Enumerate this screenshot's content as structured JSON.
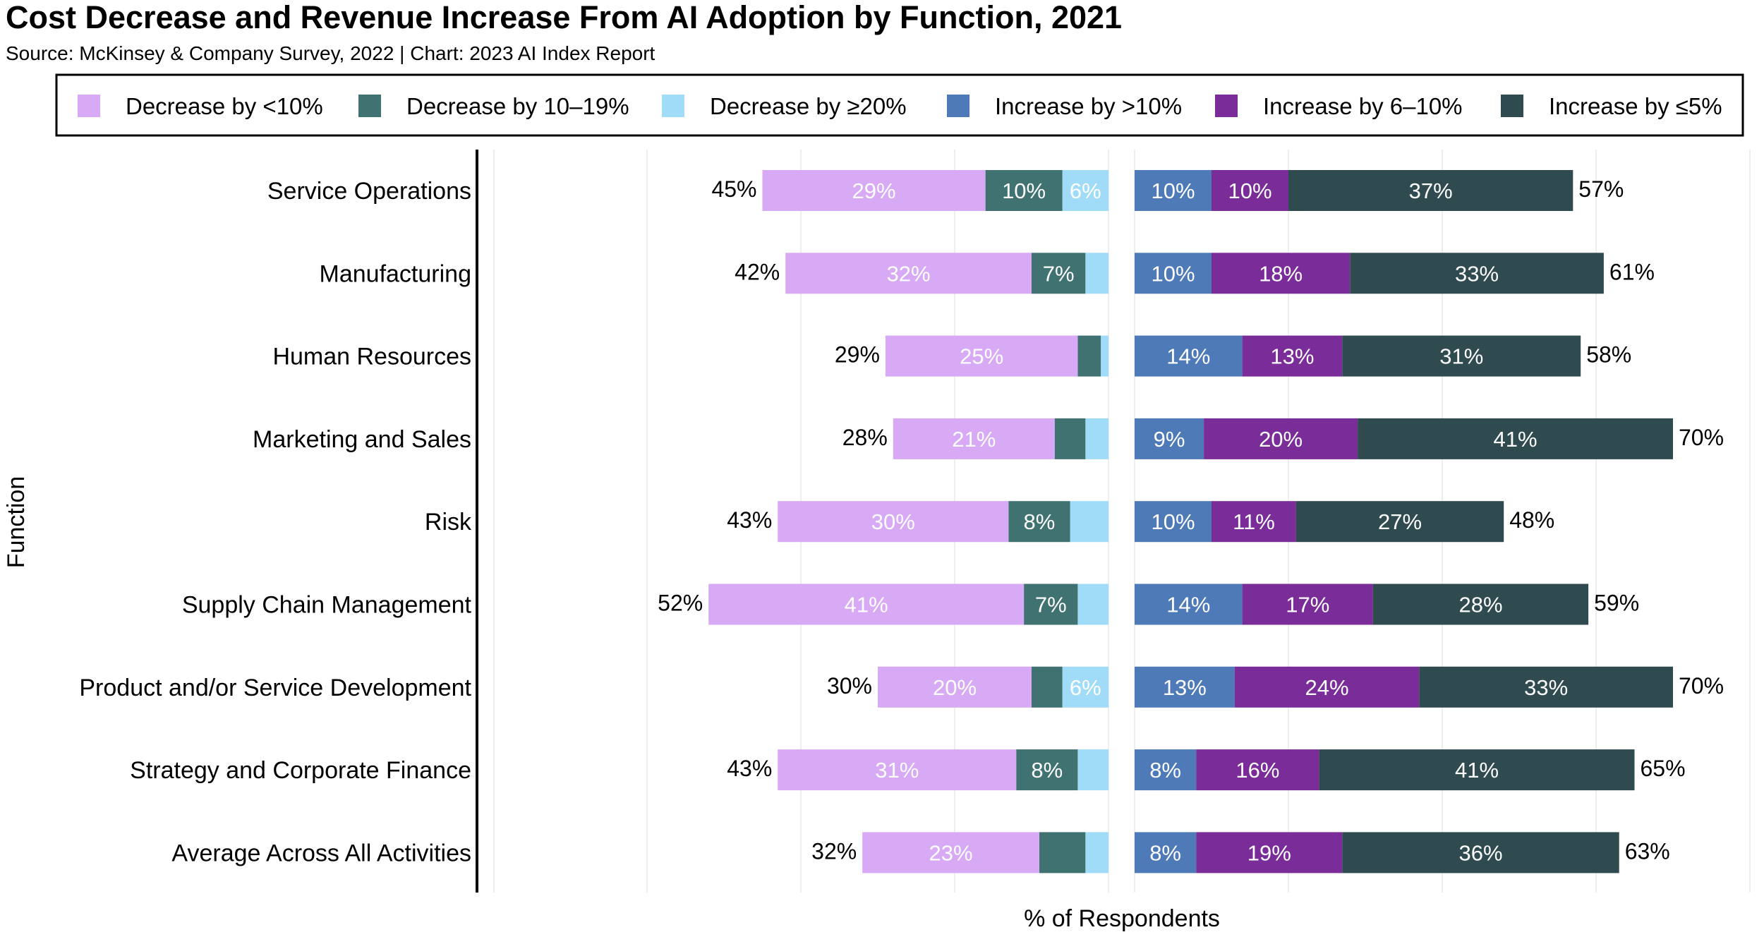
{
  "chart_data": {
    "type": "bar",
    "title": "Cost Decrease and Revenue Increase From AI Adoption by Function, 2021",
    "subtitle": "Source: McKinsey & Company Survey, 2022 | Chart: 2023 AI Index Report",
    "xlabel": "% of Respondents",
    "ylabel": "Function",
    "xlim": [
      -0.75,
      0.75
    ],
    "grid": true,
    "legend_position": "top",
    "legend": [
      {
        "key": "dec_lt10",
        "label": "Decrease by <10%",
        "color": "#d8a9f5"
      },
      {
        "key": "dec_10_19",
        "label": "Decrease by 10–19%",
        "color": "#3f7271"
      },
      {
        "key": "dec_ge20",
        "label": "Decrease by ≥20%",
        "color": "#a0dcf8"
      },
      {
        "key": "inc_gt10",
        "label": "Increase by >10%",
        "color": "#4e7ab7"
      },
      {
        "key": "inc_6_10",
        "label": "Increase by 6–10%",
        "color": "#7a2c98"
      },
      {
        "key": "inc_le5",
        "label": "Increase by ≤5%",
        "color": "#2f4b50"
      }
    ],
    "categories": [
      "Service Operations",
      "Manufacturing",
      "Human Resources",
      "Marketing and Sales",
      "Risk",
      "Supply Chain Management",
      "Product and/or Service Development",
      "Strategy and Corporate Finance",
      "Average Across All Activities"
    ],
    "decrease_series": [
      {
        "key": "dec_lt10",
        "values": [
          29,
          32,
          25,
          21,
          30,
          41,
          20,
          31,
          23
        ]
      },
      {
        "key": "dec_10_19",
        "values": [
          10,
          7,
          3,
          4,
          8,
          7,
          4,
          8,
          6
        ]
      },
      {
        "key": "dec_ge20",
        "values": [
          6,
          3,
          1,
          3,
          5,
          4,
          6,
          4,
          3
        ]
      }
    ],
    "increase_series": [
      {
        "key": "inc_gt10",
        "values": [
          10,
          10,
          14,
          9,
          10,
          14,
          13,
          8,
          8
        ]
      },
      {
        "key": "inc_6_10",
        "values": [
          10,
          18,
          13,
          20,
          11,
          17,
          24,
          16,
          19
        ]
      },
      {
        "key": "inc_le5",
        "values": [
          37,
          33,
          31,
          41,
          27,
          28,
          33,
          41,
          36
        ]
      }
    ],
    "decrease_totals": [
      "45%",
      "42%",
      "29%",
      "28%",
      "43%",
      "52%",
      "30%",
      "43%",
      "32%"
    ],
    "increase_totals": [
      "57%",
      "61%",
      "58%",
      "70%",
      "48%",
      "59%",
      "70%",
      "65%",
      "63%"
    ],
    "segment_labels": {
      "dec_lt10": [
        "29%",
        "32%",
        "25%",
        "21%",
        "30%",
        "41%",
        "20%",
        "31%",
        "23%"
      ],
      "dec_10_19": [
        "10%",
        "7%",
        "",
        "",
        "8%",
        "7%",
        "",
        "8%",
        ""
      ],
      "dec_ge20": [
        "6%",
        "",
        "",
        "",
        "",
        "",
        "6%",
        "",
        ""
      ],
      "inc_gt10": [
        "10%",
        "10%",
        "14%",
        "9%",
        "10%",
        "14%",
        "13%",
        "8%",
        "8%"
      ],
      "inc_6_10": [
        "10%",
        "18%",
        "13%",
        "20%",
        "11%",
        "17%",
        "24%",
        "16%",
        "19%"
      ],
      "inc_le5": [
        "37%",
        "33%",
        "31%",
        "41%",
        "27%",
        "28%",
        "33%",
        "41%",
        "36%"
      ]
    }
  }
}
